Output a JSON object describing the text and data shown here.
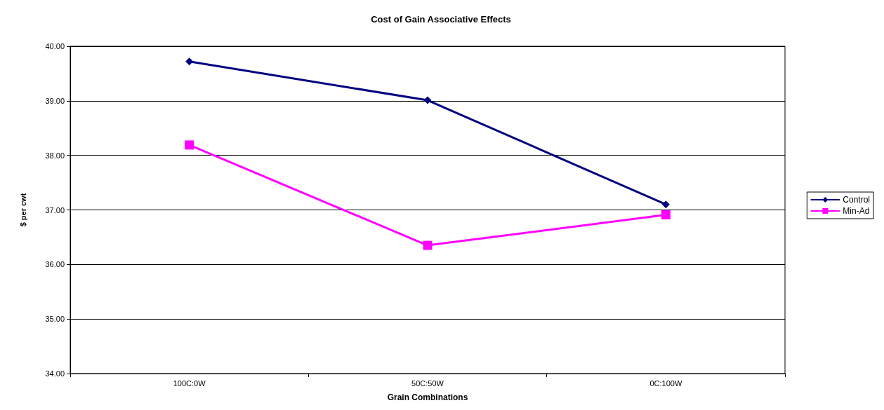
{
  "chart_data": {
    "type": "line",
    "title": "Cost of Gain Associative Effects",
    "xlabel": "Grain Combinations",
    "ylabel": "$ per cwt",
    "categories": [
      "100C:0W",
      "50C:50W",
      "0C:100W"
    ],
    "series": [
      {
        "name": "Control",
        "color": "#000080",
        "marker": "diamond",
        "values": [
          39.72,
          39.01,
          37.1
        ]
      },
      {
        "name": "Min-Ad",
        "color": "#ff00ff",
        "marker": "square",
        "values": [
          38.19,
          36.35,
          36.91
        ]
      }
    ],
    "ylim": [
      34,
      40
    ],
    "yticks": [
      {
        "value": 34,
        "label": "34.00"
      },
      {
        "value": 35,
        "label": "35.00"
      },
      {
        "value": 36,
        "label": "36.00"
      },
      {
        "value": 37,
        "label": "37.00"
      },
      {
        "value": 38,
        "label": "38.00"
      },
      {
        "value": 39,
        "label": "39.00"
      },
      {
        "value": 40,
        "label": "40.00"
      }
    ],
    "grid": "y",
    "legend": "right",
    "line_style": "solid"
  }
}
